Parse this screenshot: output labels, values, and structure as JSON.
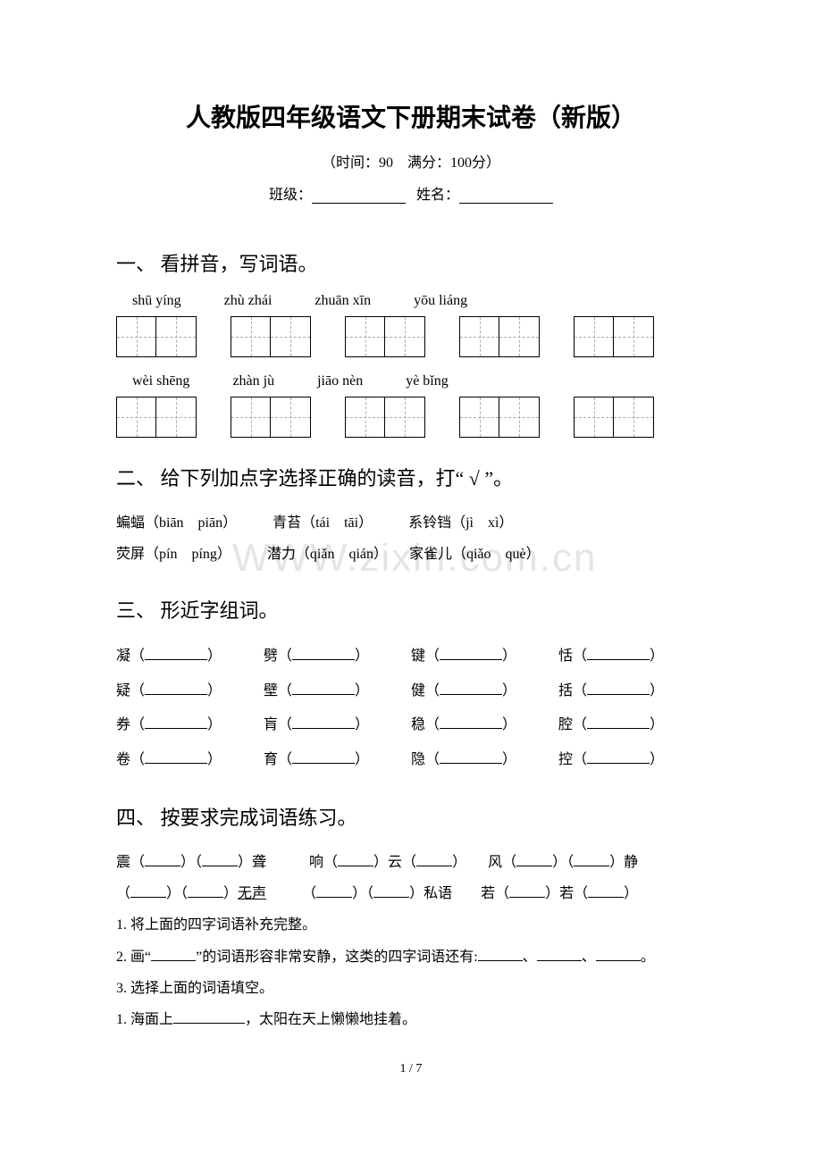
{
  "title": "人教版四年级语文下册期末试卷（新版）",
  "subtitle": "（时间：90　满分：100分）",
  "info": {
    "class_label": "班级：",
    "name_label": "姓名："
  },
  "watermark": "WWW.zixin.com.cn",
  "section1": {
    "heading": "一、 看拼音，写词语。",
    "row1": [
      "shū yíng",
      "zhù zhái",
      "zhuān xīn",
      "yōu liáng"
    ],
    "row2": [
      "wèi shēng",
      "zhàn jù",
      "jiāo nèn",
      "yè bǐng"
    ]
  },
  "section2": {
    "heading": "二、 给下列加点字选择正确的读音，打“ √ ”。",
    "line1": "蝙蝠（biān　piān）　　　青苔（tái　tāi）　　　系铃铛（jì　xì）",
    "line2": "荧屏（pín　píng）　　　潜力（qiǎn　qián）　　家雀儿（qiǎo　què）"
  },
  "section3": {
    "heading": "三、 形近字组词。",
    "rows": [
      [
        "凝",
        "劈",
        "键",
        "恬"
      ],
      [
        "疑",
        "壁",
        "健",
        "括"
      ],
      [
        "券",
        "肓",
        "稳",
        "腔"
      ],
      [
        "卷",
        "育",
        "隐",
        "控"
      ]
    ]
  },
  "section4": {
    "heading": "四、 按要求完成词语练习。",
    "line1_parts": [
      "震（",
      "）（",
      "）聋　　　响（",
      "）云（",
      "）　　风（",
      "）（",
      "）静"
    ],
    "line2_parts": [
      "（",
      "）（",
      "）",
      "无声",
      "　　　（",
      "）（",
      "）私语　　若（",
      "）若（",
      "）"
    ],
    "q1": "1. 将上面的四字词语补充完整。",
    "q2a": "2. 画“",
    "q2b": "”的词语形容非常安静，这类的四字词语还有:",
    "q2c": "、",
    "q2d": "、",
    "q2e": "。",
    "q3": "3. 选择上面的词语填空。",
    "q3_1a": "1. 海面上",
    "q3_1b": "，太阳在天上懒懒地挂着。"
  },
  "page_num": "1 / 7"
}
